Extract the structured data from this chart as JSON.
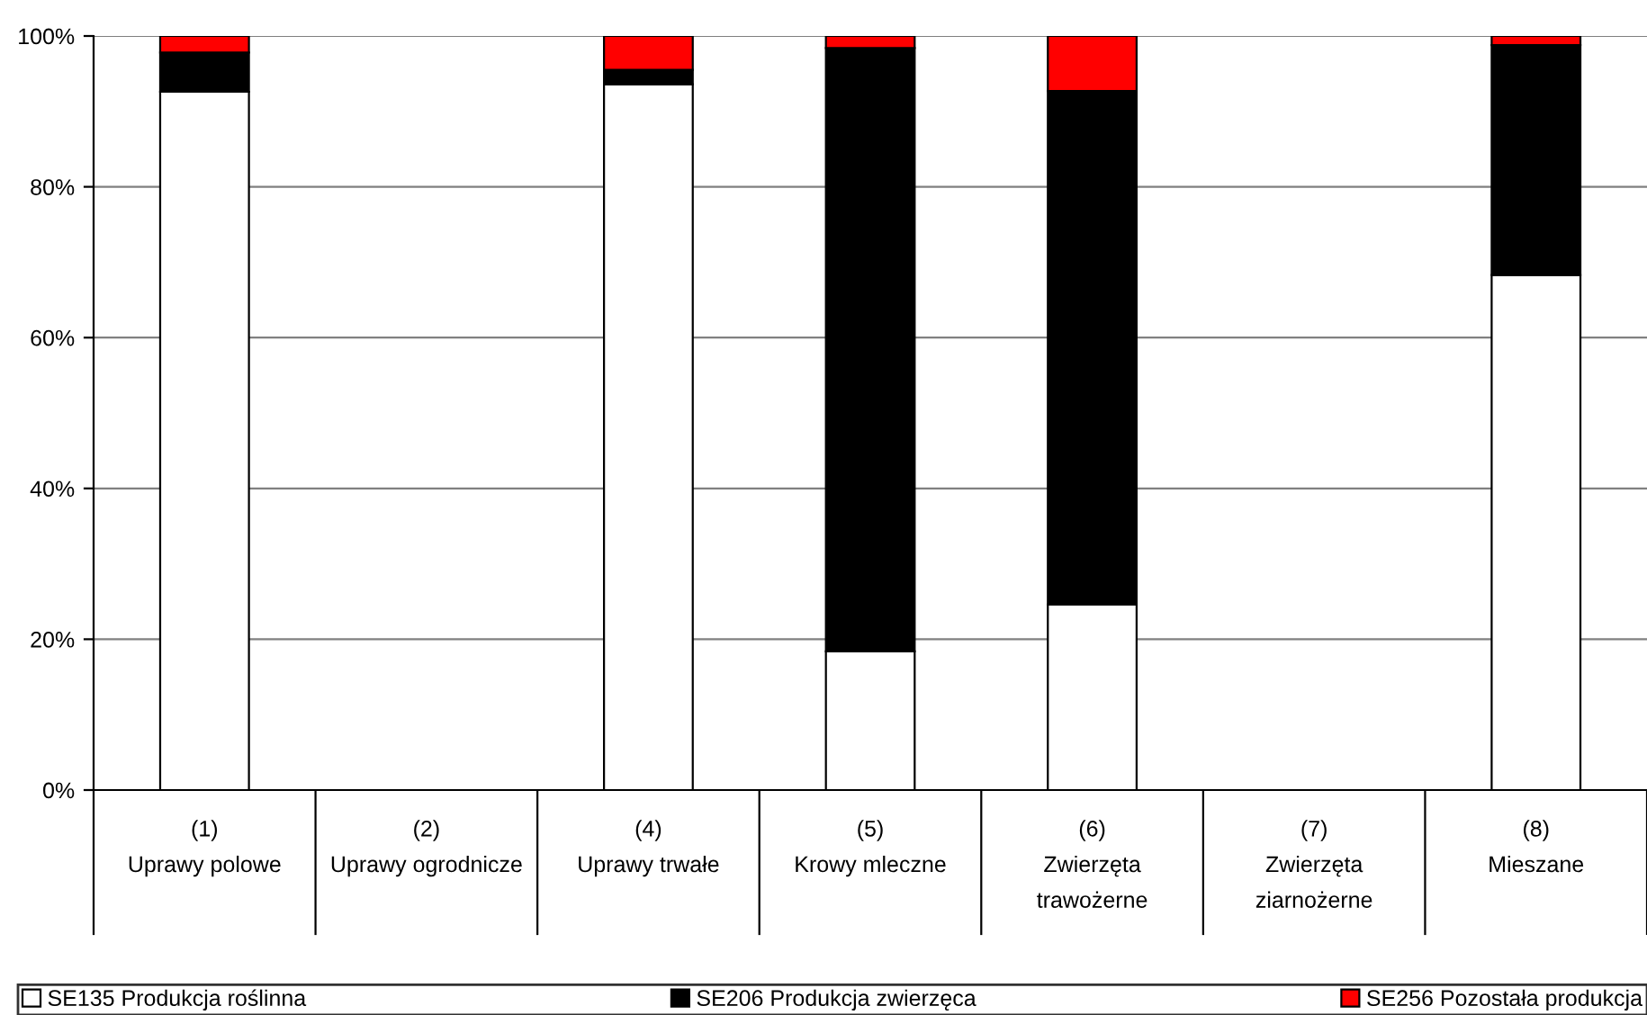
{
  "chart_data": {
    "type": "bar",
    "stacked": true,
    "categories": [
      "(1)\nUprawy polowe",
      "(2)\nUprawy ogrodnicze",
      "(4)\nUprawy trwałe",
      "(5)\nKrowy mleczne",
      "(6)\nZwierzęta\ntrawożerne",
      "(7)\nZwierzęta\nziarnożerne",
      "(8)\nMieszane"
    ],
    "series": [
      {
        "name": "SE135 Produkcja roślinna",
        "color": "#ffffff",
        "values": [
          92.6,
          null,
          93.6,
          18.4,
          24.6,
          null,
          68.3
        ]
      },
      {
        "name": "SE206 Produkcja zwierzęca",
        "color": "#000000",
        "values": [
          5.2,
          null,
          1.9,
          80.0,
          68.1,
          null,
          30.5
        ]
      },
      {
        "name": "SE256 Pozostała produkcja",
        "color": "#ff0000",
        "values": [
          2.2,
          null,
          4.5,
          1.6,
          7.3,
          null,
          1.2
        ]
      }
    ],
    "ylim": [
      0,
      100
    ],
    "yticks": [
      {
        "value": 0,
        "label": "0%"
      },
      {
        "value": 20,
        "label": "20%"
      },
      {
        "value": 40,
        "label": "40%"
      },
      {
        "value": 60,
        "label": "60%"
      },
      {
        "value": 80,
        "label": "80%"
      },
      {
        "value": 100,
        "label": "100%"
      }
    ],
    "grid": "y",
    "legend": "bottom"
  }
}
